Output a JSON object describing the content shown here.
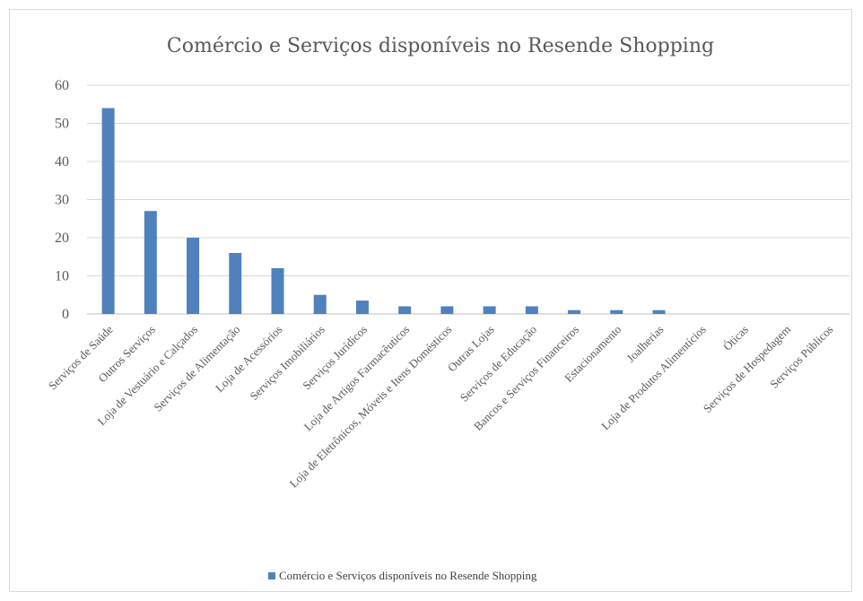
{
  "chart_data": {
    "type": "bar",
    "title": "Comércio e Serviços disponíveis no Resende Shopping",
    "xlabel": "",
    "ylabel": "",
    "ylim": [
      0,
      60
    ],
    "yticks": [
      0,
      10,
      20,
      30,
      40,
      50,
      60
    ],
    "grid": true,
    "legend_position": "bottom",
    "color": "#4f81bd",
    "categories": [
      "Serviços de Saúde",
      "Outros Serviços",
      "Loja de Vestuário e Calçados",
      "Serviços de Alimentação",
      "Loja de Acessórios",
      "Serviços Imobiliários",
      "Serviços Jurídicos",
      "Loja de Artigos Farmacêuticos",
      "Loja de Eletrônicos, Móveis e Itens Domésticos",
      "Outras Lojas",
      "Serviços de Educação",
      "Bancos e Serviços Financeiros",
      "Estacionamento",
      "Joalherias",
      "Loja de Produtos Alimentícios",
      "Óticas",
      "Serviços de Hospedagem",
      "Serviços Públicos"
    ],
    "series": [
      {
        "name": "Comércio e Serviços disponíveis no Resende Shopping",
        "values": [
          54,
          27,
          20,
          16,
          12,
          5,
          3.5,
          2,
          2,
          2,
          2,
          1,
          1,
          1,
          0,
          0,
          0,
          0
        ]
      }
    ]
  }
}
